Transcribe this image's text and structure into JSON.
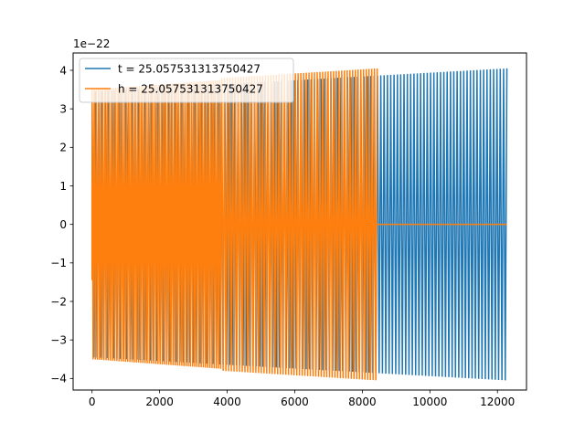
{
  "chart_data": {
    "type": "line",
    "title": "",
    "xlabel": "",
    "ylabel": "",
    "y_scale_label": "1e−22",
    "xlim": [
      -560,
      12860
    ],
    "ylim": [
      -4.3,
      4.45
    ],
    "xticks": [
      0,
      2000,
      4000,
      6000,
      8000,
      10000,
      12000
    ],
    "xtick_labels": [
      "0",
      "2000",
      "4000",
      "6000",
      "8000",
      "10000",
      "12000"
    ],
    "yticks": [
      -4,
      -3,
      -2,
      -1,
      0,
      1,
      2,
      3,
      4
    ],
    "ytick_labels": [
      "−4",
      "−3",
      "−2",
      "−1",
      "0",
      "1",
      "2",
      "3",
      "4"
    ],
    "grid": false,
    "legend_location": "upper-left",
    "series": [
      {
        "name": "t = 25.057531313750427",
        "color": "#1f77b4",
        "x_range": [
          0,
          12280
        ],
        "oscillation_cycles": 125,
        "amplitude_start": 3.45,
        "amplitude_end": 4.05,
        "start_value": 3.4,
        "end_value": 4.05
      },
      {
        "name": "h = 25.057531313750427",
        "color": "#ff7f0e",
        "segments": [
          {
            "kind": "oscillation",
            "x_range": [
              0,
              3840
            ],
            "cycles": 60,
            "amplitude_start": 3.5,
            "amplitude_end": 3.75,
            "start_value": -1.45
          },
          {
            "kind": "oscillation",
            "x_range": [
              3840,
              8440
            ],
            "cycles": 57,
            "amplitude_start": 3.8,
            "amplitude_end": 4.05
          },
          {
            "kind": "flat",
            "x_range": [
              0,
              3840
            ],
            "value": 0
          },
          {
            "kind": "flat",
            "x_range": [
              8440,
              12280
            ],
            "value": 0
          }
        ]
      }
    ]
  }
}
